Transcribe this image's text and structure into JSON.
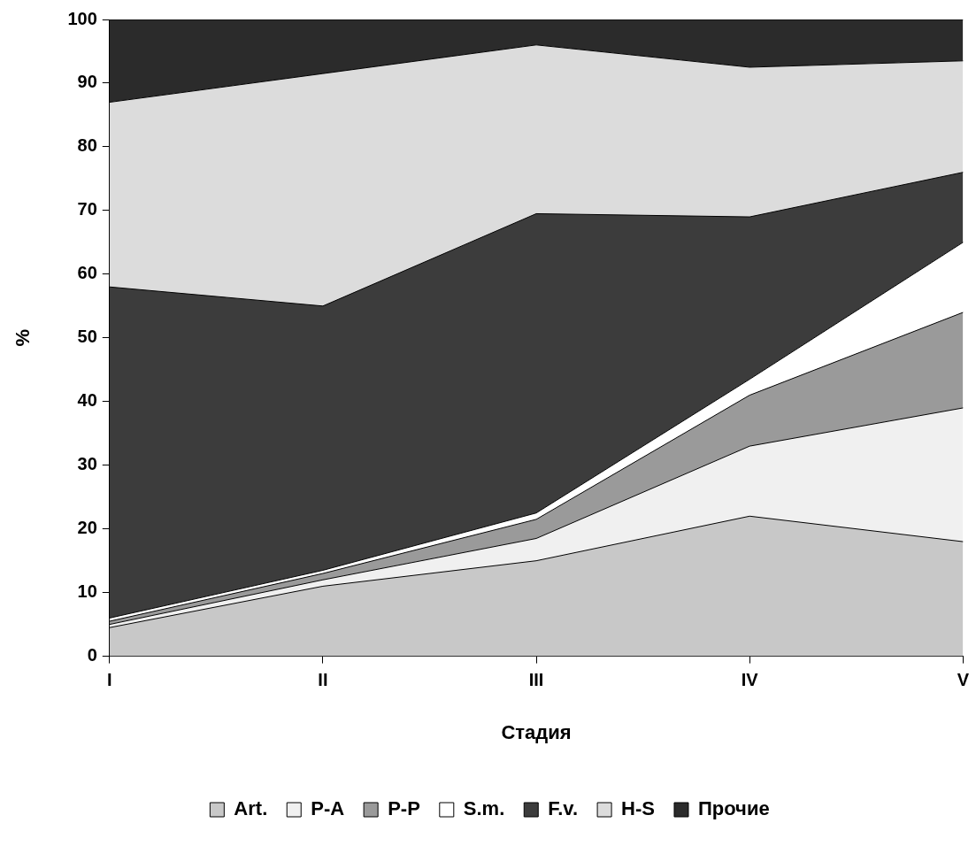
{
  "chart_data": {
    "type": "area",
    "stacked": true,
    "xlabel": "Стадия",
    "ylabel": "%",
    "categories": [
      "I",
      "II",
      "III",
      "IV",
      "V"
    ],
    "ylim": [
      0,
      100
    ],
    "yticks": [
      0,
      10,
      20,
      30,
      40,
      50,
      60,
      70,
      80,
      90,
      100
    ],
    "grid": false,
    "legend": "bottom",
    "series": [
      {
        "name": "Art.",
        "color": "#c8c8c8",
        "values": [
          4.5,
          11,
          15,
          22,
          18
        ]
      },
      {
        "name": "P-A",
        "color": "#f0f0f0",
        "values": [
          0.5,
          1,
          3.5,
          11,
          21
        ]
      },
      {
        "name": "P-P",
        "color": "#9a9a9a",
        "values": [
          0.5,
          1,
          3,
          8,
          15
        ]
      },
      {
        "name": "S.m.",
        "color": "#ffffff",
        "values": [
          0.5,
          0.5,
          1,
          2.5,
          11
        ]
      },
      {
        "name": "F.v.",
        "color": "#3c3c3c",
        "values": [
          52,
          41.5,
          47,
          25.5,
          11
        ]
      },
      {
        "name": "H-S",
        "color": "#dcdcdc",
        "values": [
          29,
          36.5,
          26.5,
          23.5,
          17.5
        ]
      },
      {
        "name": "Прочие",
        "color": "#2b2b2b",
        "values": [
          13,
          8.5,
          4,
          7.5,
          6.5
        ]
      }
    ]
  }
}
